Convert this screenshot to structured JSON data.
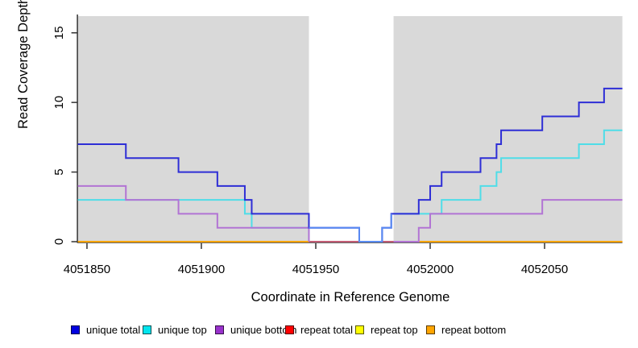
{
  "chart_data": {
    "type": "line",
    "subtype": "step-coverage",
    "title": "",
    "xlabel": "Coordinate in Reference Genome",
    "ylabel": "Read Coverage Depth",
    "xlim": [
      4051846,
      4052084
    ],
    "ylim": [
      0,
      16.2
    ],
    "grid": "off",
    "plot_background": "#d9d9d9",
    "x_ticks": [
      4051850,
      4051900,
      4051950,
      4052000,
      4052050
    ],
    "y_ticks": [
      0,
      5,
      10,
      15
    ],
    "masked_region": {
      "start": 4051947,
      "end": 4051984,
      "fill": "#ffffff"
    },
    "legend_position": "bottom",
    "legend": [
      {
        "label": "unique total",
        "color": "#0000e0"
      },
      {
        "label": "unique top",
        "color": "#00e5ee"
      },
      {
        "label": "unique bottom",
        "color": "#9932cc"
      },
      {
        "label": "repeat total",
        "color": "#ff0000"
      },
      {
        "label": "repeat top",
        "color": "#ffff00"
      },
      {
        "label": "repeat bottom",
        "color": "#ffa500"
      }
    ],
    "series": [
      {
        "name": "unique total",
        "line_color": "#2e2ed6",
        "masked_line_color": "#5a8cf2",
        "steps": [
          [
            4051846,
            7
          ],
          [
            4051867,
            6
          ],
          [
            4051890,
            5
          ],
          [
            4051907,
            4
          ],
          [
            4051919,
            3
          ],
          [
            4051922,
            2
          ],
          [
            4051947,
            1
          ],
          [
            4051969,
            0
          ],
          [
            4051979,
            1
          ],
          [
            4051983,
            2
          ],
          [
            4051995,
            3
          ],
          [
            4052000,
            4
          ],
          [
            4052005,
            5
          ],
          [
            4052022,
            6
          ],
          [
            4052029,
            7
          ],
          [
            4052031,
            8
          ],
          [
            4052049,
            9
          ],
          [
            4052065,
            10
          ],
          [
            4052076,
            11
          ]
        ],
        "end": 4052084
      },
      {
        "name": "unique top",
        "line_color": "#4fdde8",
        "steps": [
          [
            4051846,
            3
          ],
          [
            4051919,
            2
          ],
          [
            4051922,
            1
          ],
          [
            4051969,
            0
          ],
          [
            4051979,
            1
          ],
          [
            4051983,
            2
          ],
          [
            4052005,
            3
          ],
          [
            4052022,
            4
          ],
          [
            4052029,
            5
          ],
          [
            4052031,
            6
          ],
          [
            4052065,
            7
          ],
          [
            4052076,
            8
          ]
        ],
        "end": 4052084
      },
      {
        "name": "unique bottom",
        "line_color": "#b274d4",
        "steps": [
          [
            4051846,
            4
          ],
          [
            4051867,
            3
          ],
          [
            4051890,
            2
          ],
          [
            4051907,
            1
          ],
          [
            4051947,
            0
          ],
          [
            4051995,
            1
          ],
          [
            4052000,
            2
          ],
          [
            4052049,
            3
          ]
        ],
        "end": 4052084
      },
      {
        "name": "repeat total",
        "line_color": "#c25c74",
        "steps": [
          [
            4051846,
            0
          ]
        ],
        "end": 4052084
      },
      {
        "name": "repeat top",
        "line_color": "#ffff00",
        "steps": [
          [
            4051846,
            0
          ]
        ],
        "end": 4052084
      },
      {
        "name": "repeat bottom",
        "line_color": "#ffa500",
        "steps": [
          [
            4051846,
            0
          ]
        ],
        "end": 4052084
      }
    ],
    "axis_color": "#333333"
  },
  "layout_note": "zero-coverage repeat lines overlap along y=0; inside masked region the 0-line appears rose-red, elsewhere orange"
}
